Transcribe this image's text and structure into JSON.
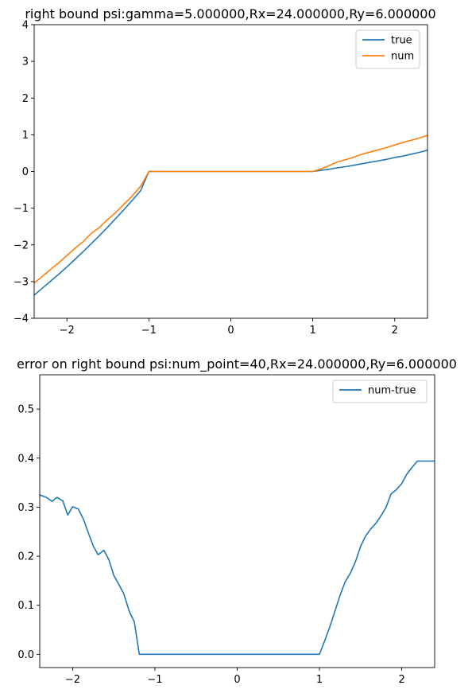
{
  "chart_data": [
    {
      "type": "line",
      "title": "right bound psi:gamma=5.000000,Rx=24.000000,Ry=6.000000",
      "xlabel": "",
      "ylabel": "",
      "xlim": [
        -2.4,
        2.4
      ],
      "ylim": [
        -4,
        4
      ],
      "xticks": [
        -2,
        -1,
        0,
        1,
        2
      ],
      "yticks": [
        -4,
        -3,
        -2,
        -1,
        0,
        1,
        2,
        3,
        4
      ],
      "xtick_labels": [
        "−2",
        "−1",
        "0",
        "1",
        "2"
      ],
      "ytick_labels": [
        "−4",
        "−3",
        "−2",
        "−1",
        "0",
        "1",
        "2",
        "3",
        "4"
      ],
      "grid": false,
      "legend": "top-right",
      "series": [
        {
          "name": "true",
          "color": "#1f77b4",
          "x": [
            -2.4,
            -2.3,
            -2.2,
            -2.1,
            -2.0,
            -1.9,
            -1.8,
            -1.7,
            -1.6,
            -1.5,
            -1.4,
            -1.3,
            -1.2,
            -1.1,
            -1.0,
            1.0,
            1.1,
            1.2,
            1.3,
            1.4,
            1.5,
            1.6,
            1.7,
            1.8,
            1.9,
            2.0,
            2.1,
            2.2,
            2.3,
            2.4
          ],
          "y": [
            -3.37,
            -3.18,
            -2.99,
            -2.8,
            -2.6,
            -2.39,
            -2.18,
            -1.96,
            -1.74,
            -1.51,
            -1.27,
            -1.03,
            -0.78,
            -0.52,
            0.0,
            0.0,
            0.03,
            0.06,
            0.1,
            0.13,
            0.17,
            0.21,
            0.25,
            0.29,
            0.33,
            0.38,
            0.42,
            0.47,
            0.52,
            0.58
          ]
        },
        {
          "name": "num",
          "color": "#ff7f0e",
          "x": [
            -2.4,
            -2.3,
            -2.2,
            -2.1,
            -2.0,
            -1.9,
            -1.8,
            -1.7,
            -1.6,
            -1.5,
            -1.4,
            -1.3,
            -1.2,
            -1.1,
            -1.0,
            1.0,
            1.1,
            1.2,
            1.3,
            1.4,
            1.5,
            1.6,
            1.7,
            1.8,
            1.9,
            2.0,
            2.1,
            2.2,
            2.3,
            2.4
          ],
          "y": [
            -3.04,
            -2.86,
            -2.67,
            -2.49,
            -2.29,
            -2.09,
            -1.91,
            -1.68,
            -1.52,
            -1.3,
            -1.11,
            -0.88,
            -0.66,
            -0.4,
            0.0,
            0.0,
            0.07,
            0.16,
            0.26,
            0.32,
            0.39,
            0.47,
            0.53,
            0.59,
            0.65,
            0.72,
            0.79,
            0.85,
            0.91,
            0.98
          ]
        }
      ]
    },
    {
      "type": "line",
      "title": "error on right bound psi:num_point=40,Rx=24.000000,Ry=6.000000",
      "xlabel": "",
      "ylabel": "",
      "xlim": [
        -2.4,
        2.4
      ],
      "ylim": [
        -0.027,
        0.57
      ],
      "xticks": [
        -2,
        -1,
        0,
        1,
        2
      ],
      "yticks": [
        0.0,
        0.1,
        0.2,
        0.3,
        0.4,
        0.5
      ],
      "xtick_labels": [
        "−2",
        "−1",
        "0",
        "1",
        "2"
      ],
      "ytick_labels": [
        "0.0",
        "0.1",
        "0.2",
        "0.3",
        "0.4",
        "0.5"
      ],
      "grid": false,
      "legend": "top-right",
      "series": [
        {
          "name": "num-true",
          "color": "#1f77b4",
          "x": [
            -2.4,
            -2.32,
            -2.25,
            -2.19,
            -2.12,
            -2.06,
            -2.0,
            -1.93,
            -1.87,
            -1.81,
            -1.75,
            -1.69,
            -1.62,
            -1.56,
            -1.5,
            -1.44,
            -1.38,
            -1.31,
            -1.25,
            -1.19,
            -1.13,
            -1.06,
            -1.0,
            1.0,
            1.06,
            1.13,
            1.19,
            1.25,
            1.31,
            1.38,
            1.44,
            1.5,
            1.56,
            1.62,
            1.69,
            1.75,
            1.81,
            1.87,
            1.93,
            2.0,
            2.06,
            2.12,
            2.19,
            2.25,
            2.32,
            2.4
          ],
          "y": [
            0.325,
            0.32,
            0.312,
            0.32,
            0.313,
            0.284,
            0.301,
            0.296,
            0.276,
            0.248,
            0.221,
            0.203,
            0.212,
            0.193,
            0.161,
            0.143,
            0.124,
            0.087,
            0.066,
            0.0,
            0.0,
            0.0,
            0.0,
            0.0,
            0.026,
            0.058,
            0.089,
            0.12,
            0.147,
            0.167,
            0.19,
            0.22,
            0.241,
            0.255,
            0.268,
            0.283,
            0.3,
            0.327,
            0.335,
            0.348,
            0.367,
            0.38,
            0.394,
            0.394,
            0.394,
            0.394
          ]
        }
      ]
    }
  ]
}
